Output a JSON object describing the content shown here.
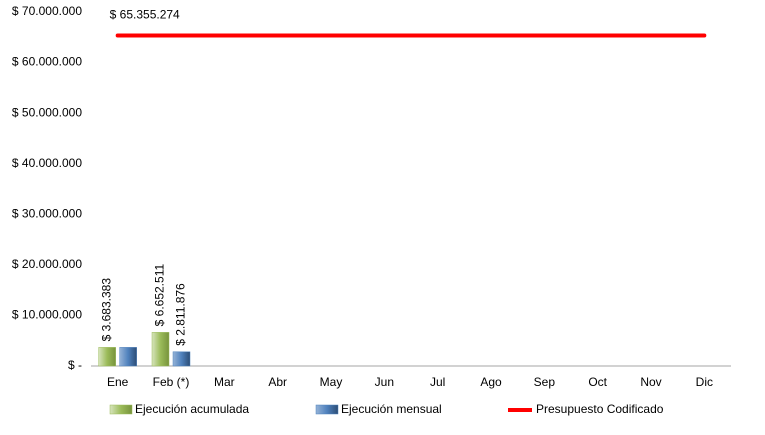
{
  "chart_data": {
    "type": "bar",
    "categories": [
      "Ene",
      "Feb (*)",
      "Mar",
      "Abr",
      "May",
      "Jun",
      "Jul",
      "Ago",
      "Sep",
      "Oct",
      "Nov",
      "Dic"
    ],
    "series": [
      {
        "name": "Ejecución acumulada",
        "type": "bar",
        "color": "#9bbb59",
        "values": [
          3683383,
          6652511,
          null,
          null,
          null,
          null,
          null,
          null,
          null,
          null,
          null,
          null
        ],
        "value_labels": [
          "$ 3.683.383",
          "$ 6.652.511",
          null,
          null,
          null,
          null,
          null,
          null,
          null,
          null,
          null,
          null
        ]
      },
      {
        "name": "Ejecución mensual",
        "type": "bar",
        "color": "#4f81bd",
        "values": [
          3683383,
          2811876,
          null,
          null,
          null,
          null,
          null,
          null,
          null,
          null,
          null,
          null
        ],
        "value_labels": [
          null,
          "$ 2.811.876",
          null,
          null,
          null,
          null,
          null,
          null,
          null,
          null,
          null,
          null
        ]
      },
      {
        "name": "Presupuesto Codificado",
        "type": "line",
        "color": "#ff0000",
        "values": [
          65355274,
          65355274,
          65355274,
          65355274,
          65355274,
          65355274,
          65355274,
          65355274,
          65355274,
          65355274,
          65355274,
          65355274
        ],
        "value_labels": [
          "$ 65.355.274",
          null,
          null,
          null,
          null,
          null,
          null,
          null,
          null,
          null,
          null,
          null
        ]
      }
    ],
    "ylim": [
      0,
      70000000
    ],
    "yticks": [
      {
        "value": 0,
        "label": "$ -"
      },
      {
        "value": 10000000,
        "label": "$ 10.000.000"
      },
      {
        "value": 20000000,
        "label": "$ 20.000.000"
      },
      {
        "value": 30000000,
        "label": "$ 30.000.000"
      },
      {
        "value": 40000000,
        "label": "$ 40.000.000"
      },
      {
        "value": 50000000,
        "label": "$ 50.000.000"
      },
      {
        "value": 60000000,
        "label": "$ 60.000.000"
      },
      {
        "value": 70000000,
        "label": "$ 70.000.000"
      }
    ],
    "grid": false,
    "legend": "bottom"
  }
}
